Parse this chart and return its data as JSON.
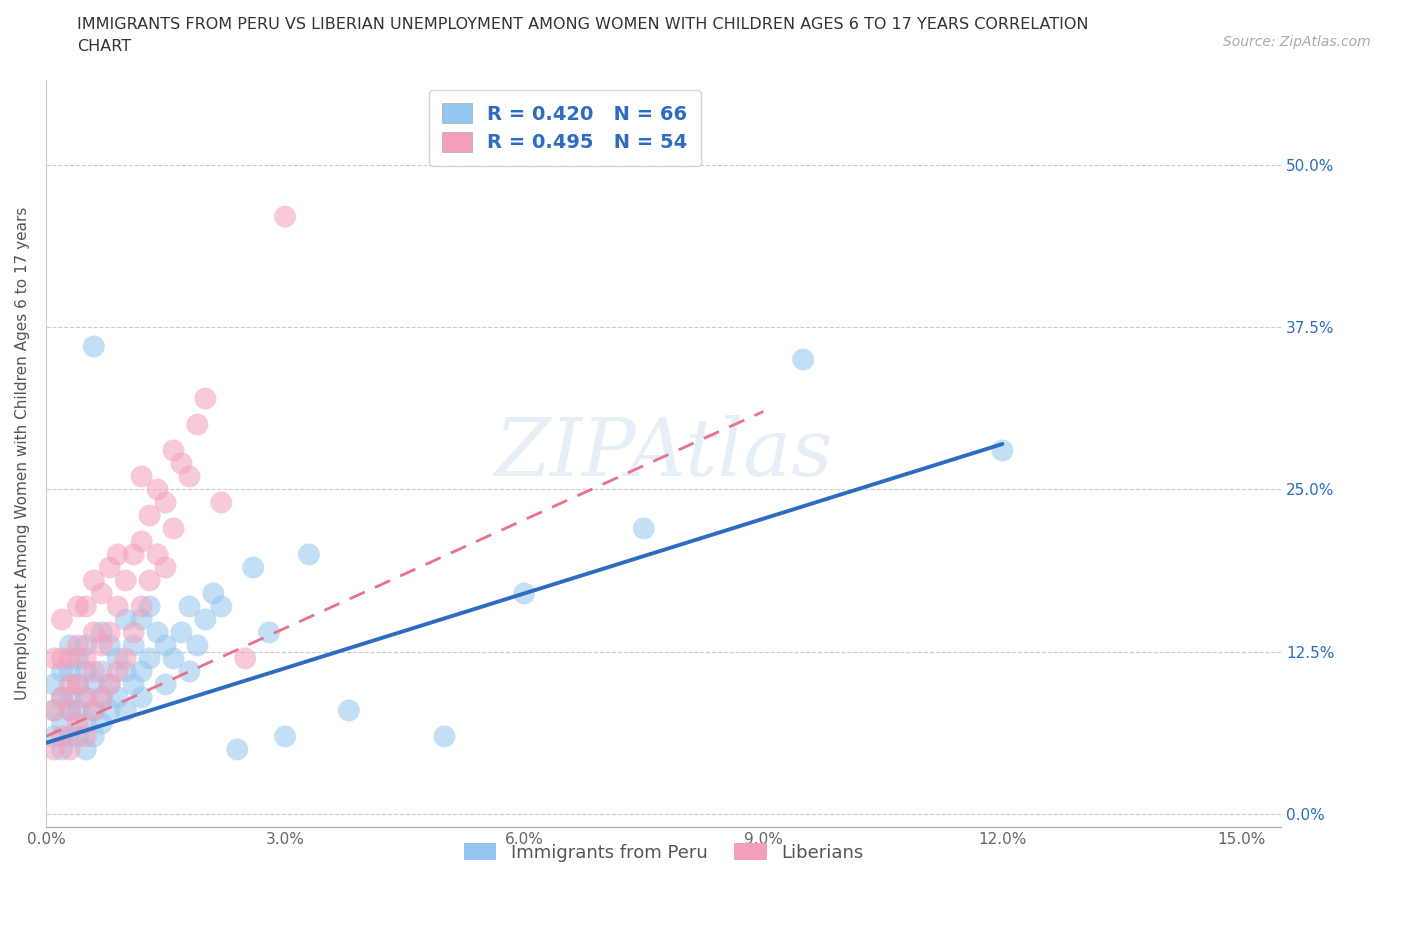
{
  "title_line1": "IMMIGRANTS FROM PERU VS LIBERIAN UNEMPLOYMENT AMONG WOMEN WITH CHILDREN AGES 6 TO 17 YEARS CORRELATION",
  "title_line2": "CHART",
  "source_text": "Source: ZipAtlas.com",
  "ylabel": "Unemployment Among Women with Children Ages 6 to 17 years",
  "xlim": [
    0.0,
    0.155
  ],
  "ylim": [
    -0.01,
    0.565
  ],
  "ytick_vals": [
    0.0,
    0.125,
    0.25,
    0.375,
    0.5
  ],
  "ytick_labels_right": [
    "0.0%",
    "12.5%",
    "25.0%",
    "37.5%",
    "50.0%"
  ],
  "xtick_vals": [
    0.0,
    0.03,
    0.06,
    0.09,
    0.12,
    0.15
  ],
  "xtick_labels": [
    "0.0%",
    "3.0%",
    "6.0%",
    "9.0%",
    "12.0%",
    "15.0%"
  ],
  "peru_color": "#92c5f0",
  "liberia_color": "#f4a0b8",
  "peru_line_color": "#2d6cc0",
  "liberia_line_color": "#e8728a",
  "peru_R": 0.42,
  "peru_N": 66,
  "liberia_R": 0.495,
  "liberia_N": 54,
  "legend_label_peru": "Immigrants from Peru",
  "legend_label_liberia": "Liberians",
  "peru_x": [
    0.001,
    0.001,
    0.001,
    0.002,
    0.002,
    0.002,
    0.002,
    0.003,
    0.003,
    0.003,
    0.003,
    0.003,
    0.004,
    0.004,
    0.004,
    0.004,
    0.005,
    0.005,
    0.005,
    0.005,
    0.005,
    0.006,
    0.006,
    0.006,
    0.006,
    0.007,
    0.007,
    0.007,
    0.007,
    0.008,
    0.008,
    0.008,
    0.009,
    0.009,
    0.01,
    0.01,
    0.01,
    0.011,
    0.011,
    0.012,
    0.012,
    0.012,
    0.013,
    0.013,
    0.014,
    0.015,
    0.015,
    0.016,
    0.017,
    0.018,
    0.018,
    0.019,
    0.02,
    0.021,
    0.022,
    0.024,
    0.026,
    0.028,
    0.03,
    0.033,
    0.038,
    0.05,
    0.06,
    0.075,
    0.095,
    0.12
  ],
  "peru_y": [
    0.06,
    0.08,
    0.1,
    0.05,
    0.07,
    0.09,
    0.11,
    0.06,
    0.08,
    0.09,
    0.11,
    0.13,
    0.06,
    0.08,
    0.1,
    0.12,
    0.05,
    0.07,
    0.09,
    0.11,
    0.13,
    0.06,
    0.08,
    0.1,
    0.36,
    0.07,
    0.09,
    0.11,
    0.14,
    0.08,
    0.1,
    0.13,
    0.09,
    0.12,
    0.08,
    0.11,
    0.15,
    0.1,
    0.13,
    0.09,
    0.11,
    0.15,
    0.12,
    0.16,
    0.14,
    0.1,
    0.13,
    0.12,
    0.14,
    0.11,
    0.16,
    0.13,
    0.15,
    0.17,
    0.16,
    0.05,
    0.19,
    0.14,
    0.06,
    0.2,
    0.08,
    0.06,
    0.17,
    0.22,
    0.35,
    0.28
  ],
  "liberia_x": [
    0.001,
    0.001,
    0.001,
    0.002,
    0.002,
    0.002,
    0.002,
    0.003,
    0.003,
    0.003,
    0.003,
    0.004,
    0.004,
    0.004,
    0.004,
    0.005,
    0.005,
    0.005,
    0.005,
    0.006,
    0.006,
    0.006,
    0.006,
    0.007,
    0.007,
    0.007,
    0.008,
    0.008,
    0.008,
    0.009,
    0.009,
    0.009,
    0.01,
    0.01,
    0.011,
    0.011,
    0.012,
    0.012,
    0.012,
    0.013,
    0.013,
    0.014,
    0.014,
    0.015,
    0.015,
    0.016,
    0.016,
    0.017,
    0.018,
    0.019,
    0.02,
    0.022,
    0.025,
    0.03
  ],
  "liberia_y": [
    0.05,
    0.08,
    0.12,
    0.06,
    0.09,
    0.12,
    0.15,
    0.05,
    0.08,
    0.1,
    0.12,
    0.07,
    0.1,
    0.13,
    0.16,
    0.06,
    0.09,
    0.12,
    0.16,
    0.08,
    0.11,
    0.14,
    0.18,
    0.09,
    0.13,
    0.17,
    0.1,
    0.14,
    0.19,
    0.11,
    0.16,
    0.2,
    0.12,
    0.18,
    0.14,
    0.2,
    0.16,
    0.21,
    0.26,
    0.18,
    0.23,
    0.2,
    0.25,
    0.19,
    0.24,
    0.22,
    0.28,
    0.27,
    0.26,
    0.3,
    0.32,
    0.24,
    0.12,
    0.46
  ],
  "peru_line_x": [
    0.0,
    0.12
  ],
  "peru_line_y": [
    0.055,
    0.285
  ],
  "liberia_line_x": [
    0.0,
    0.09
  ],
  "liberia_line_y": [
    0.06,
    0.31
  ]
}
